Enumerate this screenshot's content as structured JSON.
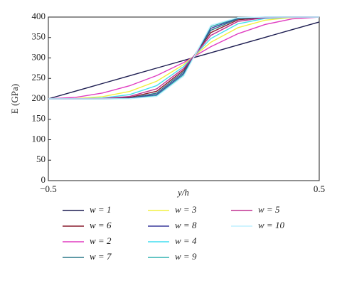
{
  "chart_data": {
    "type": "line",
    "x_label": "y/h",
    "y_label": "E (GPa)",
    "x": [
      -0.5,
      -0.4,
      -0.3,
      -0.2,
      -0.1,
      0,
      0.1,
      0.2,
      0.3,
      0.4,
      0.5
    ],
    "xlim": [
      -0.5,
      0.5
    ],
    "xticks": [
      {
        "value": -0.5,
        "label": "−0.5"
      },
      0.5
    ],
    "ylim": [
      0,
      400
    ],
    "yticks": [
      0,
      50,
      100,
      150,
      200,
      250,
      300,
      350,
      400
    ],
    "series": [
      {
        "name": "w = 1",
        "color": "#1c1c50",
        "values": [
          200,
          218.8,
          237.6,
          256.4,
          275.2,
          294,
          312.8,
          331.6,
          350.4,
          369.2,
          388
        ]
      },
      {
        "name": "w = 6",
        "color": "#8a1c2e",
        "values": [
          200,
          200,
          200.3,
          203.3,
          218.5,
          270.5,
          362,
          393.2,
          399.4,
          400,
          400
        ]
      },
      {
        "name": "w = 2",
        "color": "#e03cc0",
        "values": [
          200,
          203.6,
          214.2,
          232,
          257,
          289,
          327.6,
          359.3,
          381.9,
          395.5,
          400
        ]
      },
      {
        "name": "w = 7",
        "color": "#2a7888",
        "values": [
          200,
          200,
          200.1,
          201.9,
          214,
          266.5,
          367.7,
          395.7,
          399.8,
          400,
          400
        ]
      },
      {
        "name": "w = 3",
        "color": "#f2f040",
        "values": [
          200,
          200.7,
          205.4,
          218.1,
          243,
          284,
          338.4,
          374,
          392.3,
          399,
          400
        ]
      },
      {
        "name": "w = 8",
        "color": "#3a3a9c",
        "values": [
          200,
          200,
          200,
          201.1,
          210.5,
          262.7,
          372.5,
          397.2,
          399.9,
          400,
          400
        ]
      },
      {
        "name": "w = 4",
        "color": "#40def0",
        "values": [
          200,
          200.1,
          202,
          210.3,
          232.4,
          279.2,
          347.5,
          383.4,
          396.7,
          399.8,
          400
        ]
      },
      {
        "name": "w = 9",
        "color": "#30b2b0",
        "values": [
          200,
          200,
          200,
          200.6,
          207.9,
          259.2,
          376.6,
          398.2,
          400,
          400,
          400
        ]
      },
      {
        "name": "w = 5",
        "color": "#c03090",
        "values": [
          200,
          200,
          200.8,
          205.8,
          224.5,
          274.7,
          355.3,
          389.4,
          398.6,
          400,
          400
        ]
      },
      {
        "name": "w = 10",
        "color": "#bff0ff",
        "values": [
          200,
          200,
          200,
          200.3,
          206,
          255.8,
          380.1,
          398.9,
          400,
          400,
          400
        ]
      }
    ]
  }
}
